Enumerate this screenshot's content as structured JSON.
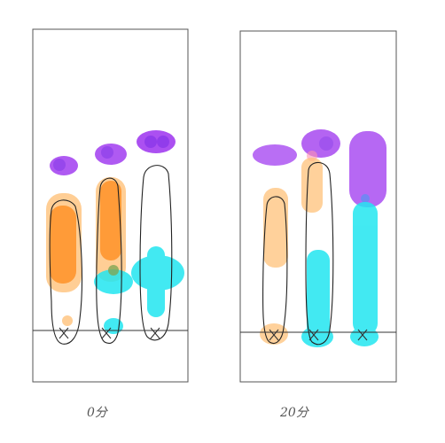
{
  "panels": [
    {
      "id": "left",
      "caption": "0分",
      "lanes": [
        {
          "name": "lane-1",
          "spots": [
            "purple",
            "orange"
          ]
        },
        {
          "name": "lane-2",
          "spots": [
            "purple",
            "orange"
          ]
        },
        {
          "name": "lane-3",
          "spots": [
            "purple",
            "cyan"
          ]
        }
      ]
    },
    {
      "id": "right",
      "caption": "20分",
      "lanes": [
        {
          "name": "lane-1",
          "spots": [
            "purple",
            "orange"
          ]
        },
        {
          "name": "lane-2",
          "spots": [
            "purple",
            "orange",
            "cyan"
          ]
        },
        {
          "name": "lane-3",
          "spots": [
            "purple",
            "cyan"
          ]
        }
      ]
    }
  ],
  "colors": {
    "purple": "#a23ef0",
    "purple_dark": "#7a1ee6",
    "orange": "#ff8a1a",
    "orange_light": "#ffc27a",
    "cyan": "#22e6f0",
    "green_mix": "#6aa04a",
    "pink": "#ff7aa0",
    "blue": "#3a6ef0"
  }
}
